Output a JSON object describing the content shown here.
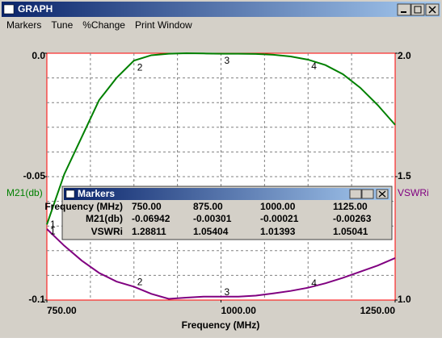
{
  "window": {
    "title": "GRAPH",
    "menu": [
      "Markers",
      "Tune",
      "%Change",
      "Print Window"
    ]
  },
  "chart_data": {
    "type": "line",
    "x_label": "Frequency (MHz)",
    "x": [
      750,
      775,
      800,
      825,
      850,
      875,
      900,
      925,
      950,
      975,
      1000,
      1025,
      1050,
      1075,
      1100,
      1125,
      1150,
      1175,
      1200,
      1225,
      1250
    ],
    "series": [
      {
        "name": "M21(db)",
        "color": "#008000",
        "values": [
          -0.0694,
          -0.049,
          -0.034,
          -0.019,
          -0.01,
          -0.003,
          -0.0008,
          -0.0002,
          0.0,
          -0.0001,
          -0.0002,
          -0.0002,
          -0.0003,
          -0.0006,
          -0.0013,
          -0.0026,
          -0.0048,
          -0.0085,
          -0.014,
          -0.021,
          -0.029
        ]
      },
      {
        "name": "VSWRi",
        "color": "#800080",
        "axis": "y2",
        "values": [
          1.288,
          1.22,
          1.16,
          1.11,
          1.075,
          1.054,
          1.025,
          1.005,
          1.01,
          1.014,
          1.014,
          1.014,
          1.018,
          1.027,
          1.037,
          1.05,
          1.068,
          1.09,
          1.115,
          1.14,
          1.17
        ]
      }
    ],
    "xlim": [
      750,
      1250
    ],
    "xticks": [
      {
        "value": 750,
        "label": "750.00"
      },
      {
        "value": 1000,
        "label": "1000.00"
      },
      {
        "value": 1250,
        "label": "1250.00"
      }
    ],
    "ylim": [
      -0.1,
      0
    ],
    "yticks": [
      {
        "value": 0,
        "label": "0.0"
      },
      -0.05,
      -0.1
    ],
    "y2lim": [
      1,
      2
    ],
    "y2ticks": [
      {
        "value": 1,
        "label": "1.0"
      },
      1.5,
      {
        "value": 2,
        "label": "2.0"
      }
    ],
    "grid": {
      "x_divisions": 8,
      "y_divisions": 10
    },
    "markers": {
      "labels": [
        "1",
        "2",
        "3",
        "4"
      ],
      "x": [
        750,
        875,
        1000,
        1125
      ]
    }
  },
  "markers_window": {
    "title": "Markers",
    "rows": [
      [
        "Frequency (MHz)",
        "750.00",
        "875.00",
        "1000.00",
        "1125.00"
      ],
      [
        "M21(db)",
        "-0.06942",
        "-0.00301",
        "-0.00021",
        "-0.00263"
      ],
      [
        "VSWRi",
        "1.28811",
        "1.05404",
        "1.01393",
        "1.05041"
      ]
    ]
  }
}
